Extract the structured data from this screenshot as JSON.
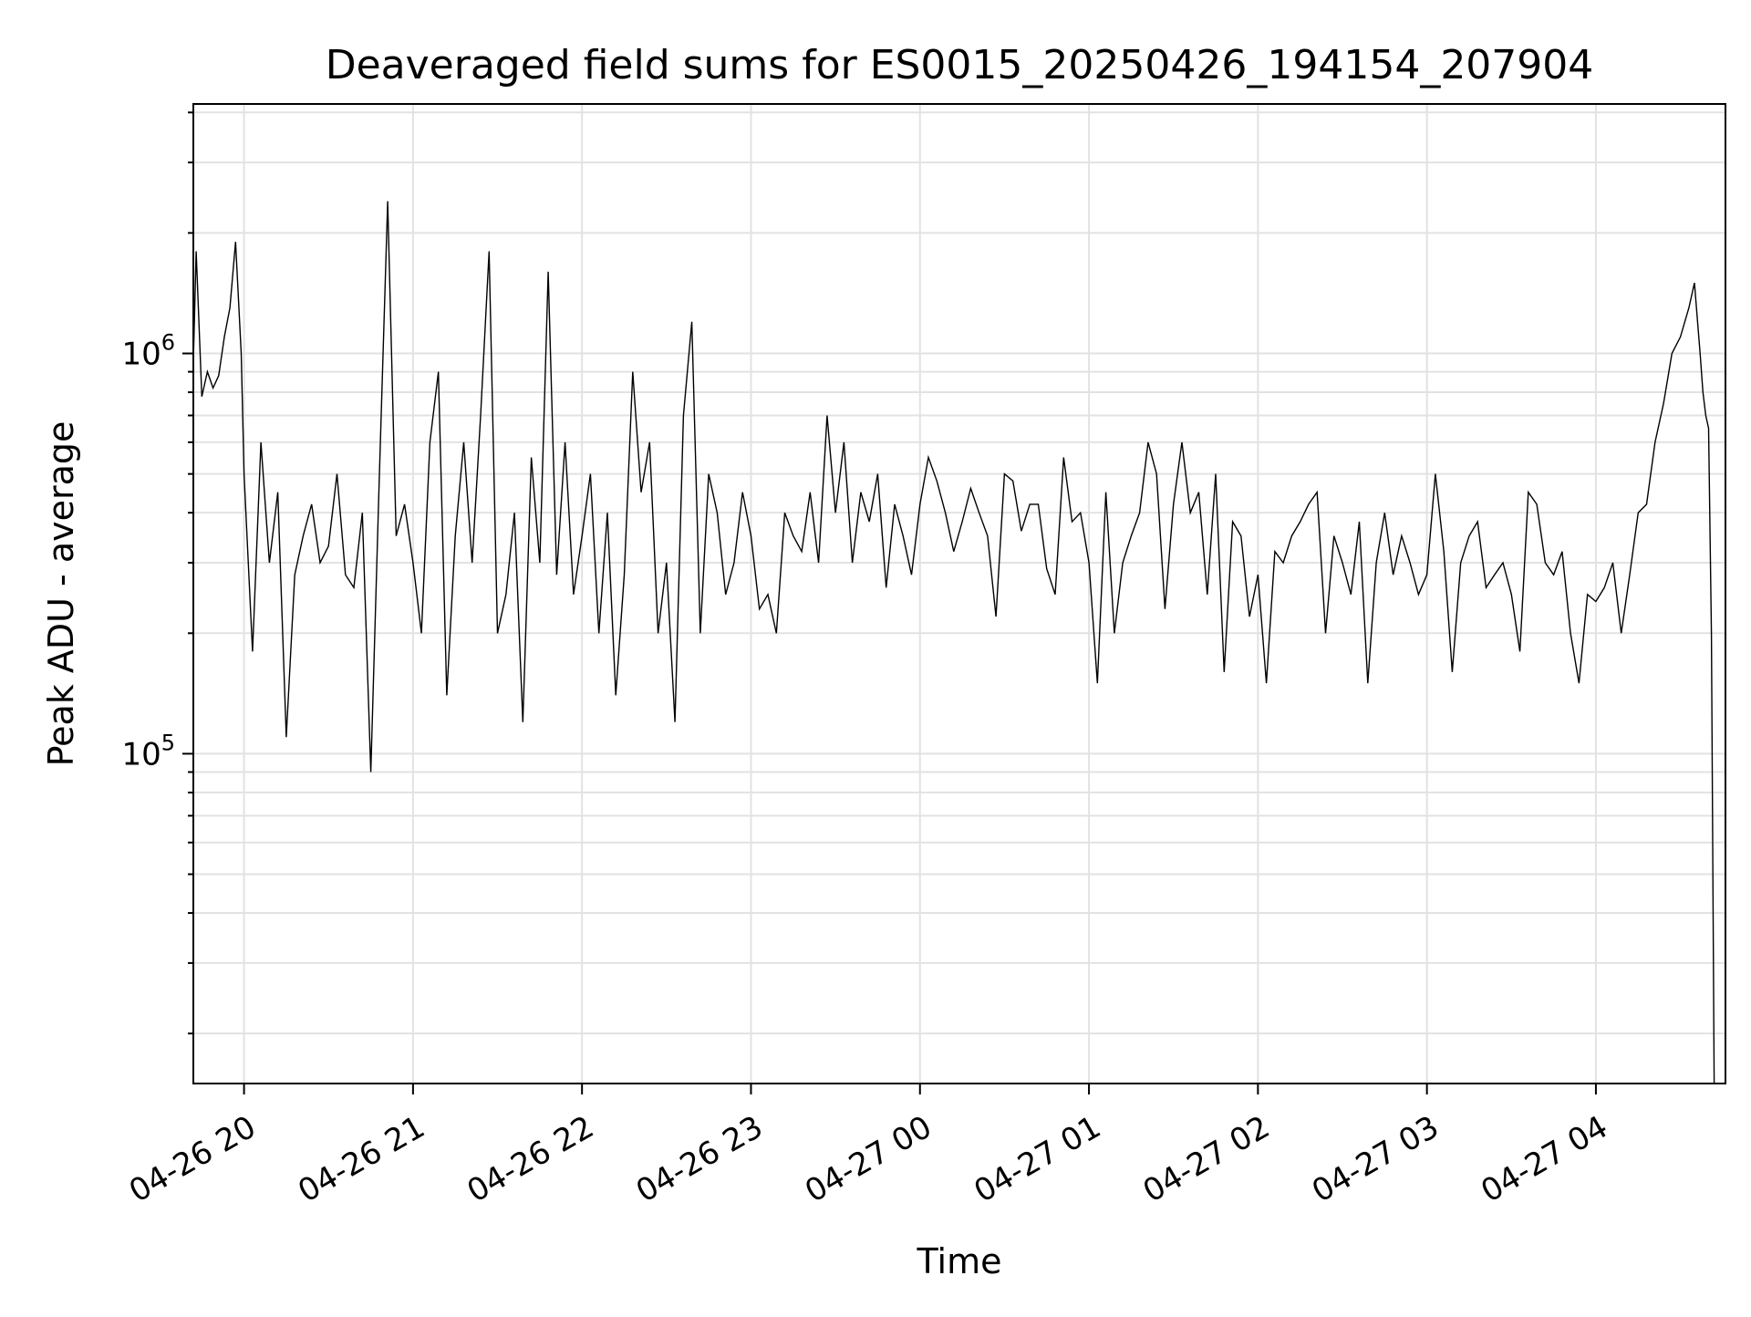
{
  "chart_data": {
    "type": "line",
    "title": "Deaveraged field sums for ES0015_20250426_194154_207904",
    "xlabel": "Time",
    "ylabel": "Peak ADU - average",
    "y_scale": "log",
    "grid": true,
    "grid_minor": true,
    "legend": "none",
    "line_color": "#000000",
    "xlim": [
      "2025-04-26 19:42",
      "2025-04-27 04:46"
    ],
    "ylim": [
      15000,
      4200000
    ],
    "x_ticks": [
      {
        "t": "2025-04-26 20:00",
        "label": "04-26 20"
      },
      {
        "t": "2025-04-26 21:00",
        "label": "04-26 21"
      },
      {
        "t": "2025-04-26 22:00",
        "label": "04-26 22"
      },
      {
        "t": "2025-04-26 23:00",
        "label": "04-26 23"
      },
      {
        "t": "2025-04-27 00:00",
        "label": "04-27 00"
      },
      {
        "t": "2025-04-27 01:00",
        "label": "04-27 01"
      },
      {
        "t": "2025-04-27 02:00",
        "label": "04-27 02"
      },
      {
        "t": "2025-04-27 03:00",
        "label": "04-27 03"
      },
      {
        "t": "2025-04-27 04:00",
        "label": "04-27 04"
      }
    ],
    "y_ticks": [
      {
        "value": 100000,
        "mantissa": "10",
        "exponent": "5"
      },
      {
        "value": 1000000,
        "mantissa": "10",
        "exponent": "6"
      }
    ],
    "series": [
      {
        "x": [
          "2025-04-26 19:42",
          "2025-04-26 19:43",
          "2025-04-26 19:45",
          "2025-04-26 19:47",
          "2025-04-26 19:49",
          "2025-04-26 19:51",
          "2025-04-26 19:53",
          "2025-04-26 19:55",
          "2025-04-26 19:57",
          "2025-04-26 19:59",
          "2025-04-26 20:00",
          "2025-04-26 20:03",
          "2025-04-26 20:06",
          "2025-04-26 20:09",
          "2025-04-26 20:12",
          "2025-04-26 20:15",
          "2025-04-26 20:18",
          "2025-04-26 20:21",
          "2025-04-26 20:24",
          "2025-04-26 20:27",
          "2025-04-26 20:30",
          "2025-04-26 20:33",
          "2025-04-26 20:36",
          "2025-04-26 20:39",
          "2025-04-26 20:42",
          "2025-04-26 20:45",
          "2025-04-26 20:48",
          "2025-04-26 20:51",
          "2025-04-26 20:54",
          "2025-04-26 20:57",
          "2025-04-26 21:00",
          "2025-04-26 21:03",
          "2025-04-26 21:06",
          "2025-04-26 21:09",
          "2025-04-26 21:12",
          "2025-04-26 21:15",
          "2025-04-26 21:18",
          "2025-04-26 21:21",
          "2025-04-26 21:24",
          "2025-04-26 21:27",
          "2025-04-26 21:30",
          "2025-04-26 21:33",
          "2025-04-26 21:36",
          "2025-04-26 21:39",
          "2025-04-26 21:42",
          "2025-04-26 21:45",
          "2025-04-26 21:48",
          "2025-04-26 21:51",
          "2025-04-26 21:54",
          "2025-04-26 21:57",
          "2025-04-26 22:00",
          "2025-04-26 22:03",
          "2025-04-26 22:06",
          "2025-04-26 22:09",
          "2025-04-26 22:12",
          "2025-04-26 22:15",
          "2025-04-26 22:18",
          "2025-04-26 22:21",
          "2025-04-26 22:24",
          "2025-04-26 22:27",
          "2025-04-26 22:30",
          "2025-04-26 22:33",
          "2025-04-26 22:36",
          "2025-04-26 22:39",
          "2025-04-26 22:42",
          "2025-04-26 22:45",
          "2025-04-26 22:48",
          "2025-04-26 22:51",
          "2025-04-26 22:54",
          "2025-04-26 22:57",
          "2025-04-26 23:00",
          "2025-04-26 23:03",
          "2025-04-26 23:06",
          "2025-04-26 23:09",
          "2025-04-26 23:12",
          "2025-04-26 23:15",
          "2025-04-26 23:18",
          "2025-04-26 23:21",
          "2025-04-26 23:24",
          "2025-04-26 23:27",
          "2025-04-26 23:30",
          "2025-04-26 23:33",
          "2025-04-26 23:36",
          "2025-04-26 23:39",
          "2025-04-26 23:42",
          "2025-04-26 23:45",
          "2025-04-26 23:48",
          "2025-04-26 23:51",
          "2025-04-26 23:54",
          "2025-04-26 23:57",
          "2025-04-27 00:00",
          "2025-04-27 00:03",
          "2025-04-27 00:06",
          "2025-04-27 00:09",
          "2025-04-27 00:12",
          "2025-04-27 00:15",
          "2025-04-27 00:18",
          "2025-04-27 00:21",
          "2025-04-27 00:24",
          "2025-04-27 00:27",
          "2025-04-27 00:30",
          "2025-04-27 00:33",
          "2025-04-27 00:36",
          "2025-04-27 00:39",
          "2025-04-27 00:42",
          "2025-04-27 00:45",
          "2025-04-27 00:48",
          "2025-04-27 00:51",
          "2025-04-27 00:54",
          "2025-04-27 00:57",
          "2025-04-27 01:00",
          "2025-04-27 01:03",
          "2025-04-27 01:06",
          "2025-04-27 01:09",
          "2025-04-27 01:12",
          "2025-04-27 01:15",
          "2025-04-27 01:18",
          "2025-04-27 01:21",
          "2025-04-27 01:24",
          "2025-04-27 01:27",
          "2025-04-27 01:30",
          "2025-04-27 01:33",
          "2025-04-27 01:36",
          "2025-04-27 01:39",
          "2025-04-27 01:42",
          "2025-04-27 01:45",
          "2025-04-27 01:48",
          "2025-04-27 01:51",
          "2025-04-27 01:54",
          "2025-04-27 01:57",
          "2025-04-27 02:00",
          "2025-04-27 02:03",
          "2025-04-27 02:06",
          "2025-04-27 02:09",
          "2025-04-27 02:12",
          "2025-04-27 02:15",
          "2025-04-27 02:18",
          "2025-04-27 02:21",
          "2025-04-27 02:24",
          "2025-04-27 02:27",
          "2025-04-27 02:30",
          "2025-04-27 02:33",
          "2025-04-27 02:36",
          "2025-04-27 02:39",
          "2025-04-27 02:42",
          "2025-04-27 02:45",
          "2025-04-27 02:48",
          "2025-04-27 02:51",
          "2025-04-27 02:54",
          "2025-04-27 02:57",
          "2025-04-27 03:00",
          "2025-04-27 03:03",
          "2025-04-27 03:06",
          "2025-04-27 03:09",
          "2025-04-27 03:12",
          "2025-04-27 03:15",
          "2025-04-27 03:18",
          "2025-04-27 03:21",
          "2025-04-27 03:24",
          "2025-04-27 03:27",
          "2025-04-27 03:30",
          "2025-04-27 03:33",
          "2025-04-27 03:36",
          "2025-04-27 03:39",
          "2025-04-27 03:42",
          "2025-04-27 03:45",
          "2025-04-27 03:48",
          "2025-04-27 03:51",
          "2025-04-27 03:54",
          "2025-04-27 03:57",
          "2025-04-27 04:00",
          "2025-04-27 04:03",
          "2025-04-27 04:06",
          "2025-04-27 04:09",
          "2025-04-27 04:12",
          "2025-04-27 04:15",
          "2025-04-27 04:18",
          "2025-04-27 04:21",
          "2025-04-27 04:24",
          "2025-04-27 04:27",
          "2025-04-27 04:30",
          "2025-04-27 04:33",
          "2025-04-27 04:35",
          "2025-04-27 04:37",
          "2025-04-27 04:38",
          "2025-04-27 04:39",
          "2025-04-27 04:40",
          "2025-04-27 04:41",
          "2025-04-27 04:42"
        ],
        "y": [
          950000,
          1800000,
          780000,
          900000,
          820000,
          880000,
          1100000,
          1300000,
          1900000,
          1000000,
          500000,
          180000,
          600000,
          300000,
          450000,
          110000,
          280000,
          350000,
          420000,
          300000,
          330000,
          500000,
          280000,
          260000,
          400000,
          90000,
          480000,
          2400000,
          350000,
          420000,
          300000,
          200000,
          600000,
          900000,
          140000,
          350000,
          600000,
          300000,
          700000,
          1800000,
          200000,
          250000,
          400000,
          120000,
          550000,
          300000,
          1600000,
          280000,
          600000,
          250000,
          350000,
          500000,
          200000,
          400000,
          140000,
          280000,
          900000,
          450000,
          600000,
          200000,
          300000,
          120000,
          700000,
          1200000,
          200000,
          500000,
          400000,
          250000,
          300000,
          450000,
          350000,
          230000,
          250000,
          200000,
          400000,
          350000,
          320000,
          450000,
          300000,
          700000,
          400000,
          600000,
          300000,
          450000,
          380000,
          500000,
          260000,
          420000,
          350000,
          280000,
          420000,
          550000,
          480000,
          400000,
          320000,
          380000,
          460000,
          400000,
          350000,
          220000,
          500000,
          480000,
          360000,
          420000,
          420000,
          290000,
          250000,
          550000,
          380000,
          400000,
          300000,
          150000,
          450000,
          200000,
          300000,
          350000,
          400000,
          600000,
          500000,
          230000,
          420000,
          600000,
          400000,
          450000,
          250000,
          500000,
          160000,
          380000,
          350000,
          220000,
          280000,
          150000,
          320000,
          300000,
          350000,
          380000,
          420000,
          450000,
          200000,
          350000,
          300000,
          250000,
          380000,
          150000,
          300000,
          400000,
          280000,
          350000,
          300000,
          250000,
          280000,
          500000,
          320000,
          160000,
          300000,
          350000,
          380000,
          260000,
          280000,
          300000,
          250000,
          180000,
          450000,
          420000,
          300000,
          280000,
          320000,
          200000,
          150000,
          250000,
          240000,
          260000,
          300000,
          200000,
          280000,
          400000,
          420000,
          600000,
          750000,
          1000000,
          1100000,
          1300000,
          1500000,
          1000000,
          800000,
          700000,
          650000,
          200000,
          15000
        ]
      }
    ]
  }
}
